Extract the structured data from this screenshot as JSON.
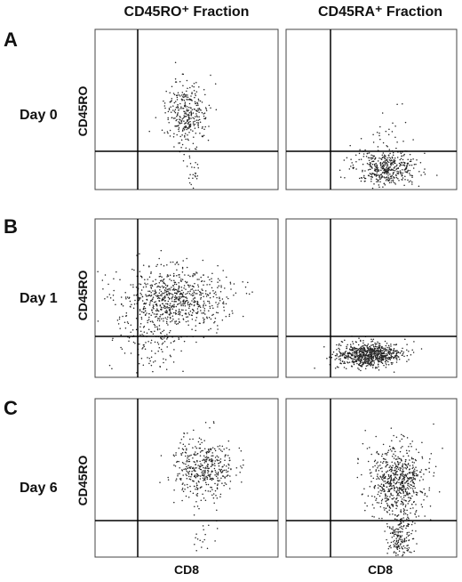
{
  "columns": [
    "CD45RO⁺ Fraction",
    "CD45RA⁺ Fraction"
  ],
  "rows": [
    {
      "letter": "A",
      "day": "Day 0",
      "y_label": "CD45RO"
    },
    {
      "letter": "B",
      "day": "Day 1",
      "y_label": "CD45RO"
    },
    {
      "letter": "C",
      "day": "Day 6",
      "y_label": "CD45RO"
    }
  ],
  "x_labels": [
    "CD8",
    "CD8"
  ]
}
